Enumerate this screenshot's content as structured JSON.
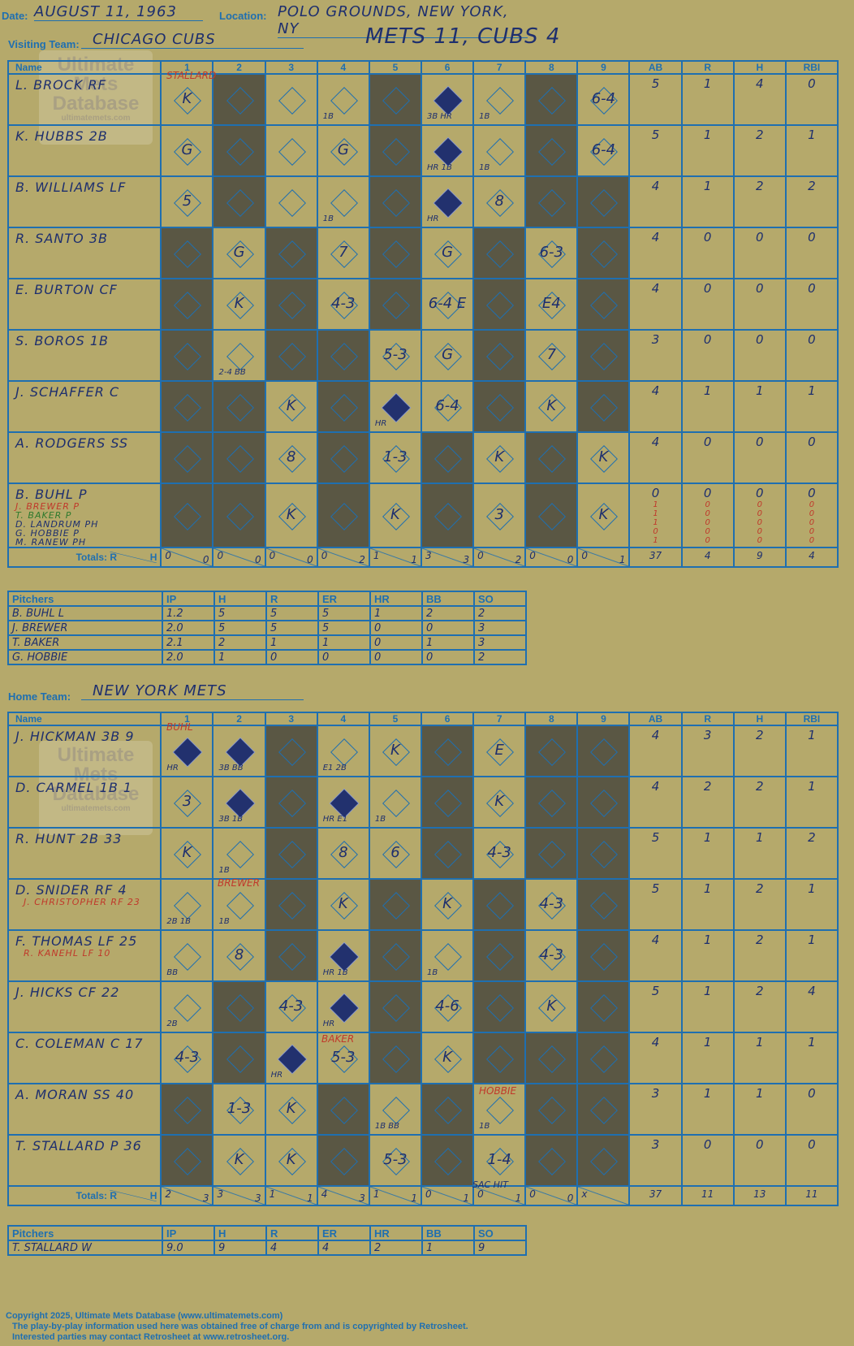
{
  "header": {
    "date_label": "Date:",
    "date": "AUGUST 11, 1963",
    "location_label": "Location:",
    "location": "POLO GROUNDS, NEW YORK, NY",
    "visiting_label": "Visiting Team:",
    "visiting_team": "CHICAGO CUBS",
    "result": "METS 11, CUBS 4",
    "home_label": "Home Team:",
    "home_team": "NEW YORK METS"
  },
  "watermark": {
    "line1": "Ultimate",
    "line2": "Mets",
    "line3": "Database",
    "url": "ultimatemets.com"
  },
  "columns": {
    "name": "Name",
    "innings": [
      "1",
      "2",
      "3",
      "4",
      "5",
      "6",
      "7",
      "8",
      "9"
    ],
    "ab": "AB",
    "r": "R",
    "h": "H",
    "rbi": "RBI",
    "totals": "Totals:",
    "rh_r": "R",
    "rh_h": "H"
  },
  "pitch_columns": {
    "pitchers": "Pitchers",
    "ip": "IP",
    "h": "H",
    "r": "R",
    "er": "ER",
    "hr": "HR",
    "bb": "BB",
    "so": "SO"
  },
  "visitors": {
    "batters": [
      {
        "name": "L. BROCK RF",
        "ab": "5",
        "r": "1",
        "h": "4",
        "rbi": "0"
      },
      {
        "name": "K. HUBBS 2B",
        "ab": "5",
        "r": "1",
        "h": "2",
        "rbi": "1"
      },
      {
        "name": "B. WILLIAMS LF",
        "ab": "4",
        "r": "1",
        "h": "2",
        "rbi": "2"
      },
      {
        "name": "R. SANTO 3B",
        "ab": "4",
        "r": "0",
        "h": "0",
        "rbi": "0"
      },
      {
        "name": "E. BURTON CF",
        "ab": "4",
        "r": "0",
        "h": "0",
        "rbi": "0"
      },
      {
        "name": "S. BOROS 1B",
        "ab": "3",
        "r": "0",
        "h": "0",
        "rbi": "0"
      },
      {
        "name": "J. SCHAFFER C",
        "ab": "4",
        "r": "1",
        "h": "1",
        "rbi": "1"
      },
      {
        "name": "A. RODGERS SS",
        "ab": "4",
        "r": "0",
        "h": "0",
        "rbi": "0"
      },
      {
        "name": "B. BUHL P",
        "ab": "0",
        "r": "0",
        "h": "0",
        "rbi": "0"
      }
    ],
    "subs": [
      "J. BREWER P",
      "T. BAKER P",
      "D. LANDRUM PH",
      "G. HOBBIE P",
      "M. RANEW PH"
    ],
    "sub_stats": [
      "1 0 0 0",
      "1 0 0 0",
      "1 0 0 0",
      "0 0 0 0",
      "1 0 0 0"
    ],
    "totals_innings": [
      [
        "0",
        "0"
      ],
      [
        "0",
        "0"
      ],
      [
        "0",
        "0"
      ],
      [
        "0",
        "2"
      ],
      [
        "1",
        "1"
      ],
      [
        "3",
        "3"
      ],
      [
        "0",
        "2"
      ],
      [
        "0",
        "0"
      ],
      [
        "0",
        "1"
      ]
    ],
    "totals": {
      "ab": "37",
      "r": "4",
      "h": "9",
      "rbi": "4"
    },
    "pitchers": [
      {
        "name": "B. BUHL  L",
        "ip": "1.2",
        "h": "5",
        "r": "5",
        "er": "5",
        "hr": "1",
        "bb": "2",
        "so": "2"
      },
      {
        "name": "J. BREWER",
        "ip": "2.0",
        "h": "5",
        "r": "5",
        "er": "5",
        "hr": "0",
        "bb": "0",
        "so": "3"
      },
      {
        "name": "T. BAKER",
        "ip": "2.1",
        "h": "2",
        "r": "1",
        "er": "1",
        "hr": "0",
        "bb": "1",
        "so": "3"
      },
      {
        "name": "G. HOBBIE",
        "ip": "2.0",
        "h": "1",
        "r": "0",
        "er": "0",
        "hr": "0",
        "bb": "0",
        "so": "2"
      }
    ]
  },
  "home": {
    "batters": [
      {
        "name": "J. HICKMAN 3B  9",
        "ab": "4",
        "r": "3",
        "h": "2",
        "rbi": "1"
      },
      {
        "name": "D. CARMEL 1B  1",
        "ab": "4",
        "r": "2",
        "h": "2",
        "rbi": "1"
      },
      {
        "name": "R. HUNT 2B  33",
        "ab": "5",
        "r": "1",
        "h": "1",
        "rbi": "2"
      },
      {
        "name": "D. SNIDER RF  4",
        "ab": "5",
        "r": "1",
        "h": "2",
        "rbi": "1"
      },
      {
        "name": "F. THOMAS LF  25",
        "ab": "4",
        "r": "1",
        "h": "2",
        "rbi": "1"
      },
      {
        "name": "J. HICKS CF  22",
        "ab": "5",
        "r": "1",
        "h": "2",
        "rbi": "4"
      },
      {
        "name": "C. COLEMAN C  17",
        "ab": "4",
        "r": "1",
        "h": "1",
        "rbi": "1"
      },
      {
        "name": "A. MORAN SS  40",
        "ab": "3",
        "r": "1",
        "h": "1",
        "rbi": "0"
      },
      {
        "name": "T. STALLARD P  36",
        "ab": "3",
        "r": "0",
        "h": "0",
        "rbi": "0"
      }
    ],
    "subs": {
      "3": "J. CHRISTOPHER RF  23",
      "4": "R. KANEHL LF  10"
    },
    "totals_innings": [
      [
        "2",
        "3"
      ],
      [
        "3",
        "3"
      ],
      [
        "1",
        "1"
      ],
      [
        "4",
        "3"
      ],
      [
        "1",
        "1"
      ],
      [
        "0",
        "1"
      ],
      [
        "0",
        "1"
      ],
      [
        "0",
        "0"
      ],
      [
        "x",
        ""
      ]
    ],
    "totals": {
      "ab": "37",
      "r": "11",
      "h": "13",
      "rbi": "11"
    },
    "pitchers": [
      {
        "name": "T. STALLARD  W",
        "ip": "9.0",
        "h": "9",
        "r": "4",
        "er": "4",
        "hr": "2",
        "bb": "1",
        "so": "9"
      }
    ]
  },
  "plays": {
    "visitors": [
      [
        "K",
        "",
        "",
        "1B",
        "",
        "3B HR",
        "1B",
        "",
        "6-4"
      ],
      [
        "G",
        "",
        "",
        "G",
        "",
        "HR 1B",
        "1B",
        "",
        "6-4"
      ],
      [
        "5",
        "",
        "",
        "1B",
        "",
        "HR",
        "8",
        "",
        ""
      ],
      [
        "",
        "G",
        "",
        "7",
        "",
        "G",
        "",
        "6-3",
        ""
      ],
      [
        "",
        "K",
        "",
        "4-3",
        "",
        "6-4 E",
        "",
        "E4",
        ""
      ],
      [
        "",
        "2-4 BB",
        "",
        "",
        "5-3",
        "G",
        "",
        "7",
        ""
      ],
      [
        "",
        "",
        "K",
        "",
        "HR",
        "6-4",
        "",
        "K",
        ""
      ],
      [
        "",
        "",
        "8",
        "",
        "1-3",
        "",
        "K",
        "",
        "K"
      ],
      [
        "",
        "",
        "K",
        "",
        "K",
        "",
        "3",
        "",
        "K"
      ]
    ],
    "home": [
      [
        "HR",
        "3B BB",
        "",
        "E1 2B",
        "K",
        "",
        "E",
        "",
        ""
      ],
      [
        "3",
        "3B 1B",
        "",
        "HR E1",
        "1B",
        "",
        "K",
        "",
        ""
      ],
      [
        "K",
        "1B",
        "",
        "8",
        "6",
        "",
        "4-3",
        "",
        ""
      ],
      [
        "2B 1B",
        "1B",
        "",
        "K",
        "",
        "K",
        "",
        "4-3",
        ""
      ],
      [
        "BB",
        "8",
        "",
        "HR 1B",
        "",
        "1B",
        "",
        "4-3",
        ""
      ],
      [
        "2B",
        "",
        "4-3",
        "HR",
        "",
        "4-6",
        "",
        "K",
        ""
      ],
      [
        "4-3",
        "",
        "HR",
        "5-3",
        "",
        "K",
        "",
        "",
        ""
      ],
      [
        "",
        "1-3",
        "K",
        "",
        "1B BB",
        "",
        "1B",
        "",
        ""
      ],
      [
        "",
        "K",
        "K",
        "",
        "5-3",
        "",
        "1-4",
        "",
        ""
      ]
    ],
    "notes": {
      "stallard": "STALLARD",
      "buhl": "BUHL",
      "brewer": "BREWER",
      "baker": "BAKER",
      "hobbie": "HOBBIE",
      "sac": "SAC HIT"
    }
  },
  "footer": {
    "line1": "Copyright 2025, Ultimate Mets Database (www.ultimatemets.com)",
    "line2": "The play-by-play information used here was obtained free of charge from and is copyrighted by Retrosheet.",
    "line3": "Interested parties may contact Retrosheet at www.retrosheet.org."
  },
  "colors": {
    "background": "#b5a96b",
    "grid": "#1f6fb0",
    "dark": "#5a5744",
    "ink": "#1e2f6e",
    "red": "#c0392b"
  }
}
